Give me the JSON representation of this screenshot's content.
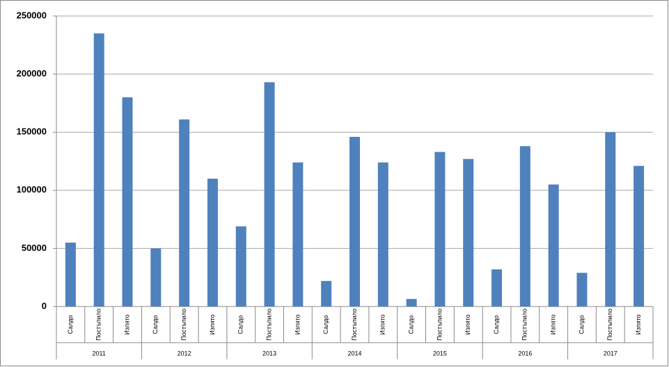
{
  "chart_data": {
    "type": "bar",
    "categories": [
      "Салдо",
      "Постъпило",
      "Изпято",
      "Салдо",
      "Постъпило",
      "Изпято",
      "Салдо",
      "Постъпило",
      "Изпято",
      "Салдо",
      "Постъпило",
      "Изпято",
      "Салдо",
      "Постъпило",
      "Изпято",
      "Салдо",
      "Постъпило",
      "Изпято",
      "Салдо",
      "Постъпило",
      "Изпято"
    ],
    "groups": [
      "2011",
      "2012",
      "2013",
      "2014",
      "2015",
      "2016",
      "2017"
    ],
    "values": [
      55000,
      235000,
      180000,
      50000,
      161000,
      110000,
      69000,
      193000,
      124000,
      22000,
      146000,
      124000,
      6500,
      133000,
      127000,
      32000,
      138000,
      105000,
      29000,
      150000,
      121000
    ],
    "color": "#4f81bd",
    "ylim": [
      0,
      250000
    ],
    "yticks": [
      0,
      50000,
      100000,
      150000,
      200000,
      250000
    ],
    "grid": true
  }
}
